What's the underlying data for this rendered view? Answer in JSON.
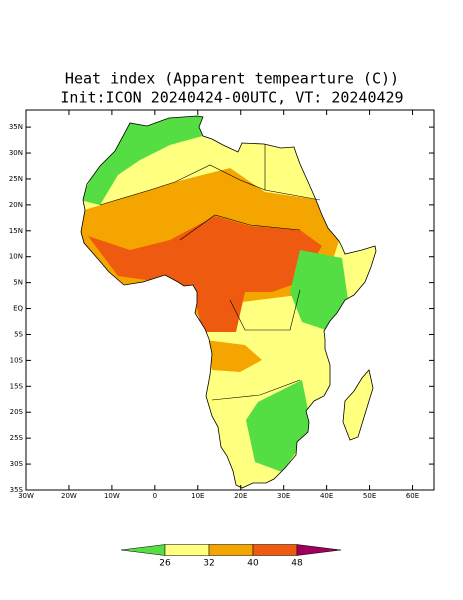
{
  "title": {
    "line1": "Heat index (Apparent tempearture (C))",
    "line2": "Init:ICON 20240424-00UTC, VT: 20240429"
  },
  "map": {
    "lat_lim": [
      -35,
      38.3
    ],
    "lon_lim": [
      -30,
      65
    ],
    "lat_ticks": [
      {
        "value": 35,
        "label": "35N"
      },
      {
        "value": 30,
        "label": "30N"
      },
      {
        "value": 25,
        "label": "25N"
      },
      {
        "value": 20,
        "label": "20N"
      },
      {
        "value": 15,
        "label": "15N"
      },
      {
        "value": 10,
        "label": "10N"
      },
      {
        "value": 5,
        "label": "5N"
      },
      {
        "value": 0,
        "label": "EQ"
      },
      {
        "value": -5,
        "label": "5S"
      },
      {
        "value": -10,
        "label": "10S"
      },
      {
        "value": -15,
        "label": "15S"
      },
      {
        "value": -20,
        "label": "20S"
      },
      {
        "value": -25,
        "label": "25S"
      },
      {
        "value": -30,
        "label": "30S"
      },
      {
        "value": -35,
        "label": "35S"
      }
    ],
    "lon_ticks": [
      {
        "value": -30,
        "label": "30W"
      },
      {
        "value": -20,
        "label": "20W"
      },
      {
        "value": -10,
        "label": "10W"
      },
      0,
      {
        "value": 10,
        "label": "10E"
      },
      {
        "value": 20,
        "label": "20E"
      },
      {
        "value": 30,
        "label": "30E"
      },
      {
        "value": 40,
        "label": "40E"
      },
      {
        "value": 50,
        "label": "50E"
      },
      {
        "value": 60,
        "label": "60E"
      }
    ]
  },
  "colorbar": {
    "ticks": [
      26,
      32,
      40,
      48
    ],
    "colors": [
      "#55dd44",
      "#ffff80",
      "#f5a500",
      "#ee5a10",
      "#a0005a"
    ]
  }
}
